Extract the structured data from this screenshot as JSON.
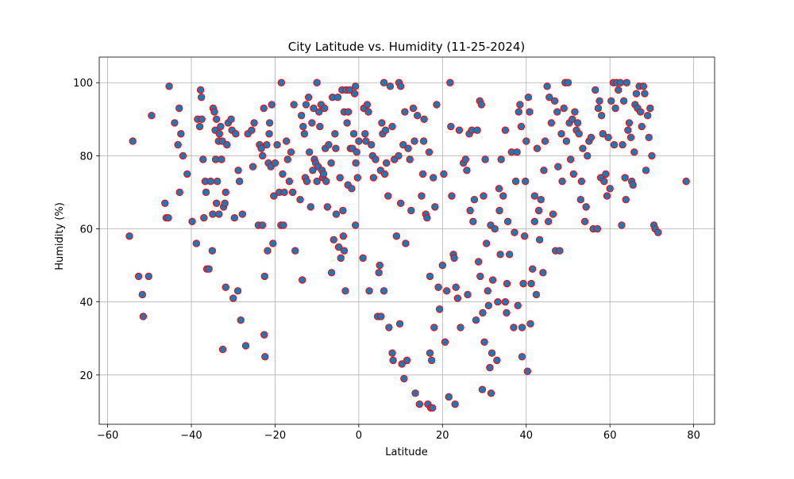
{
  "chart_data": {
    "type": "scatter",
    "title": "City Latitude vs. Humidity (11-25-2024)",
    "x_label": "Latitude",
    "y_label": "Humidity (%)",
    "color": "#1f77b4",
    "edge_color": "#ff0000",
    "grid": true,
    "xlim": [
      -62,
      85
    ],
    "ylim": [
      6.5,
      107
    ],
    "xticks": [
      {
        "value": -60,
        "label": "−60"
      },
      {
        "value": -40,
        "label": "−40"
      },
      {
        "value": -20,
        "label": "−20"
      },
      0,
      20,
      40,
      60,
      80
    ],
    "yticks": [
      20,
      40,
      60,
      80,
      100
    ],
    "x": [
      -54.8,
      -54,
      -52.6,
      -51.7,
      -51.5,
      -50.2,
      -49.5,
      -46.3,
      -46,
      -45.5,
      -45.3,
      -44,
      -43.2,
      -42.9,
      -42.8,
      -42.5,
      -42,
      -41,
      -39.8,
      -38.8,
      -38.5,
      -38,
      -37.8,
      -37.6,
      -37.5,
      -37.2,
      -37,
      -36.7,
      -36.5,
      -36.3,
      -35.8,
      -35.4,
      -35,
      -34.9,
      -34.8,
      -34.5,
      -34.3,
      -34.2,
      -34,
      -34,
      -33.8,
      -33.5,
      -33.4,
      -33.3,
      -33,
      -32.8,
      -32.6,
      -32.5,
      -32.3,
      -32,
      -31.8,
      -31.8,
      -31.5,
      -31.2,
      -30.5,
      -30.3,
      -30,
      -29.7,
      -29.4,
      -28.9,
      -28.8,
      -28.5,
      -28.2,
      -27.8,
      -27,
      -26.5,
      -25.6,
      -25.3,
      -25,
      -24,
      -23.7,
      -23.3,
      -23,
      -23,
      -22.7,
      -22.6,
      -22.5,
      -22.4,
      -22,
      -21.8,
      -21.6,
      -21.4,
      -21.3,
      -21,
      -20.8,
      -20.5,
      -20.3,
      -20,
      -19.5,
      -19,
      -18.6,
      -18.5,
      -18.2,
      -18,
      -17.8,
      -17.3,
      -17,
      -16.6,
      -16.2,
      -15.8,
      -15.5,
      -15.2,
      -14,
      -13.7,
      -13.5,
      -13.3,
      -13,
      -12.8,
      -12.6,
      -12.4,
      -12,
      -11.8,
      -11.5,
      -11.2,
      -11,
      -10.8,
      -10.6,
      -10.3,
      -10,
      -10,
      -9.7,
      -9.5,
      -9.3,
      -9,
      -8.8,
      -8.6,
      -8.4,
      -8.2,
      -8,
      -7.8,
      -7.5,
      -7.2,
      -6.6,
      -6.5,
      -6.3,
      -6,
      -5.7,
      -5.5,
      -5.4,
      -5,
      -4.8,
      -4.5,
      -4.3,
      -4,
      -3.8,
      -3.7,
      -3.5,
      -3.5,
      -3.2,
      -3,
      -2.8,
      -2.6,
      -2.5,
      -2.2,
      -2,
      -1.7,
      -1.5,
      -1.2,
      -1,
      -0.8,
      -0.8,
      -0.7,
      -0.5,
      -0.3,
      0,
      1,
      1.2,
      1.5,
      1.7,
      2,
      2.3,
      2.5,
      3,
      3.3,
      3.5,
      4,
      4.5,
      4.8,
      5,
      5.2,
      5.3,
      5.5,
      5.7,
      6,
      6,
      6.2,
      6.4,
      6.6,
      7,
      7.2,
      7.5,
      8,
      8,
      8.2,
      8.5,
      9,
      9.5,
      9.6,
      9.8,
      10,
      10,
      10.3,
      10.6,
      10.8,
      11,
      11.2,
      11.5,
      11.8,
      12.2,
      12.5,
      13,
      13.3,
      13.5,
      14,
      14.5,
      15,
      15.3,
      15.5,
      15.6,
      16,
      16.3,
      16.5,
      16.8,
      17,
      17,
      17.2,
      17.4,
      17.6,
      17.8,
      18,
      18.2,
      18.6,
      19,
      19.3,
      20,
      20.3,
      20.6,
      21,
      21.5,
      21.8,
      22,
      22.2,
      22.6,
      22.8,
      23,
      23.2,
      23.6,
      24,
      24.3,
      25,
      25.5,
      25.8,
      26,
      26.4,
      26.6,
      27,
      27.3,
      27.6,
      28,
      28.3,
      28.6,
      28.9,
      29,
      29.3,
      29.5,
      29.6,
      29.8,
      30,
      30.2,
      30.5,
      30.8,
      31,
      31.3,
      31.5,
      31.6,
      31.8,
      32,
      32.5,
      33,
      33.2,
      33.5,
      33.6,
      33.8,
      34,
      34.5,
      35,
      35,
      35.3,
      35.4,
      35.6,
      36,
      36.5,
      37,
      37.2,
      37.5,
      37.8,
      38,
      38.2,
      38.5,
      38.8,
      39,
      39,
      39.3,
      39.6,
      39.8,
      40,
      40.3,
      40.5,
      40.8,
      41,
      41.2,
      41.5,
      42,
      42,
      42.4,
      42.6,
      43,
      43.2,
      43.5,
      44,
      44.2,
      44.5,
      45,
      45.3,
      45.5,
      46,
      46.4,
      46.8,
      47,
      47.4,
      47.6,
      48,
      48.4,
      48.6,
      49,
      49.3,
      49.6,
      50,
      50.3,
      50.6,
      51,
      51.3,
      51.6,
      52,
      52.3,
      52.6,
      53,
      53.2,
      53.5,
      54,
      54.3,
      54.6,
      55,
      55.5,
      56,
      56.5,
      57,
      57.2,
      57.5,
      57.8,
      58,
      58.3,
      58.6,
      59,
      59.3,
      59.6,
      60,
      60.3,
      60.8,
      61,
      61.3,
      61.6,
      62,
      62.5,
      62.8,
      63,
      63.3,
      63.6,
      63.8,
      64,
      64.3,
      64.6,
      65,
      65.2,
      65.5,
      65.8,
      66,
      66.3,
      66.6,
      67,
      67.3,
      67.6,
      68,
      68.3,
      68.6,
      69,
      69.3,
      69.6,
      70,
      70.5,
      70.8,
      71.5,
      78.2
    ],
    "values": [
      58,
      84,
      47,
      42,
      36,
      47,
      91,
      67,
      63,
      63,
      99,
      89,
      83,
      93,
      70,
      86,
      80,
      75,
      62,
      56,
      90,
      88,
      98,
      96,
      90,
      79,
      63,
      73,
      70,
      49,
      49,
      73,
      54,
      64,
      93,
      92,
      87,
      79,
      67,
      90,
      73,
      84,
      64,
      86,
      88,
      79,
      84,
      27,
      66,
      67,
      70,
      44,
      83,
      89,
      90,
      87,
      41,
      63,
      86,
      43,
      76,
      73,
      35,
      64,
      28,
      86,
      87,
      77,
      89,
      61,
      83,
      82,
      80,
      61,
      93,
      31,
      47,
      25,
      83,
      54,
      78,
      86,
      89,
      77,
      94,
      56,
      69,
      78,
      83,
      70,
      61,
      100,
      75,
      61,
      70,
      84,
      79,
      73,
      81,
      70,
      94,
      54,
      68,
      91,
      46,
      88,
      86,
      74,
      94,
      73,
      96,
      81,
      66,
      89,
      76,
      93,
      79,
      78,
      100,
      73,
      77,
      92,
      88,
      94,
      76,
      74,
      75,
      93,
      82,
      73,
      66,
      83,
      78,
      48,
      96,
      57,
      86,
      82,
      64,
      96,
      55,
      74,
      52,
      98,
      65,
      58,
      54,
      92,
      43,
      98,
      89,
      72,
      92,
      98,
      82,
      71,
      82,
      86,
      97,
      61,
      99,
      78,
      81,
      74,
      84,
      52,
      93,
      86,
      84,
      94,
      92,
      43,
      83,
      80,
      74,
      79,
      36,
      48,
      50,
      76,
      36,
      89,
      86,
      100,
      43,
      75,
      87,
      78,
      69,
      33,
      99,
      88,
      26,
      24,
      79,
      58,
      80,
      100,
      34,
      99,
      67,
      23,
      83,
      19,
      92,
      56,
      24,
      82,
      79,
      65,
      93,
      84,
      15,
      91,
      12,
      69,
      75,
      84,
      90,
      64,
      63,
      12,
      81,
      26,
      47,
      11,
      24,
      11,
      74,
      33,
      66,
      94,
      44,
      38,
      50,
      75,
      29,
      43,
      14,
      100,
      88,
      69,
      53,
      52,
      12,
      44,
      41,
      87,
      33,
      78,
      79,
      76,
      42,
      86,
      65,
      87,
      62,
      68,
      35,
      87,
      51,
      95,
      47,
      94,
      16,
      37,
      69,
      29,
      79,
      56,
      43,
      39,
      22,
      61,
      15,
      26,
      46,
      60,
      24,
      40,
      71,
      65,
      53,
      79,
      69,
      40,
      87,
      37,
      45,
      62,
      53,
      81,
      33,
      59,
      73,
      81,
      39,
      92,
      94,
      88,
      33,
      25,
      45,
      58,
      73,
      84,
      21,
      96,
      92,
      34,
      45,
      49,
      69,
      62,
      42,
      82,
      65,
      57,
      68,
      48,
      76,
      84,
      99,
      62,
      96,
      89,
      64,
      95,
      54,
      92,
      77,
      54,
      86,
      73,
      93,
      100,
      84,
      100,
      89,
      79,
      90,
      75,
      92,
      87,
      89,
      86,
      68,
      73,
      82,
      62,
      66,
      80,
      84,
      85,
      60,
      98,
      60,
      93,
      95,
      74,
      91,
      86,
      73,
      75,
      69,
      85,
      71,
      95,
      100,
      83,
      93,
      100,
      98,
      100,
      61,
      83,
      95,
      74,
      68,
      100,
      87,
      89,
      85,
      73,
      72,
      81,
      94,
      97,
      93,
      99,
      92,
      88,
      99,
      97,
      76,
      91,
      85,
      93,
      80,
      61,
      60,
      59,
      73
    ]
  }
}
